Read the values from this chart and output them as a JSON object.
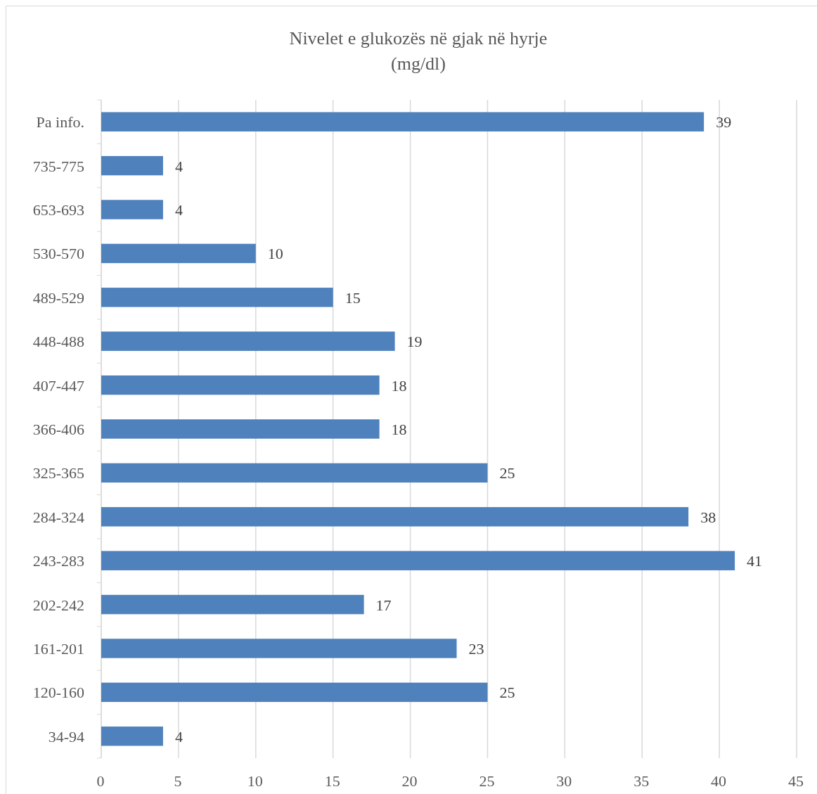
{
  "chart_data": {
    "type": "bar",
    "orientation": "horizontal",
    "title": "Nivelet e glukozës në gjak në hyrje\n(mg/dl)",
    "categories": [
      "Pa info.",
      "735-775",
      "653-693",
      "530-570",
      "489-529",
      "448-488",
      "407-447",
      "366-406",
      "325-365",
      "284-324",
      "243-283",
      "202-242",
      "161-201",
      "120-160",
      "34-94"
    ],
    "values": [
      39,
      4,
      4,
      10,
      15,
      19,
      18,
      18,
      25,
      38,
      41,
      17,
      23,
      25,
      4
    ],
    "color": "#4f81bd",
    "xlim": [
      0,
      45
    ],
    "xticks": [
      0,
      5,
      10,
      15,
      20,
      25,
      30,
      35,
      40,
      45
    ],
    "grid": "x",
    "data_labels": true
  }
}
